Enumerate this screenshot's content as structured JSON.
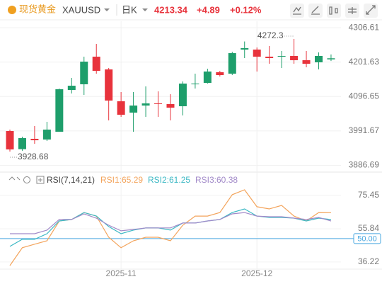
{
  "header": {
    "name": "现货黄金",
    "symbol": "XAUUSD",
    "period": "日K",
    "price": "4213.34",
    "change": "+4.89",
    "change_pct": "+0.12%"
  },
  "chart_data": [
    {
      "type": "candlestick",
      "categories": [
        null,
        null,
        null,
        null,
        null,
        null,
        null,
        null,
        null,
        "2025-11",
        null,
        null,
        null,
        null,
        null,
        null,
        null,
        null,
        null,
        null,
        "2025-12",
        null,
        null,
        null,
        null,
        null,
        null
      ],
      "open": [
        3991.3,
        3936,
        3967.6,
        3965.4,
        3989.2,
        4116.7,
        4134.0,
        4218.2,
        4179.3,
        4082.1,
        4047.5,
        4069.1,
        4075.6,
        4073.5,
        4067.0,
        4134.0,
        4138.3,
        4170.7,
        4166.4,
        4239.9,
        4239.9,
        4218.2,
        4220.4,
        4220.4,
        4207.4,
        4201.0,
        4210
      ],
      "close": [
        3935.2,
        3969.7,
        3963.2,
        3995.7,
        4118.8,
        4129.6,
        4203.1,
        4175.0,
        4084.3,
        4041.0,
        4069.1,
        4075.6,
        4073.5,
        4062.7,
        4136.1,
        4136.1,
        4172.9,
        4162.1,
        4229.0,
        4244.2,
        4218.2,
        4213.9,
        4220.4,
        4207.4,
        4196.6,
        4220.4,
        4213.34
      ],
      "high": [
        3995.7,
        3974.1,
        4006.5,
        4019.4,
        4121.0,
        4153.4,
        4218.2,
        4257.1,
        4183.7,
        4110.2,
        4110.2,
        4127.5,
        4112.4,
        4103.7,
        4142.6,
        4166.4,
        4181.5,
        4175.0,
        4233.4,
        4264.62,
        4246.3,
        4250.7,
        4235.5,
        4272.3,
        4235.5,
        4231.2,
        4225
      ],
      "low": [
        3928.68,
        3931,
        3952.4,
        3961.1,
        3989.2,
        4105.9,
        4101.5,
        4166.4,
        4023.8,
        4034.6,
        3989.2,
        4034.6,
        4034.6,
        4023.8,
        4038.9,
        4121.0,
        4136.1,
        4157.7,
        4162.1,
        4213.9,
        4172.9,
        4196.6,
        4183.7,
        4196.6,
        4185.8,
        4179.3,
        4205
      ],
      "up_color": "#1e9e6b",
      "down_color": "#e8333c",
      "ylim": [
        3866,
        4322
      ],
      "yticks": [
        3886.69,
        3991.67,
        4096.65,
        4201.63,
        4306.61
      ],
      "grid": true
    },
    {
      "type": "line",
      "title": "RSI(7,14,21)",
      "series": [
        {
          "name": "RSI1:65.29",
          "color": "#f3a45c",
          "values": [
            34.1,
            44.6,
            46.7,
            48.7,
            60.4,
            61.3,
            65.4,
            63.3,
            50.8,
            44.6,
            48.7,
            50.8,
            50.8,
            48.7,
            57.9,
            63.3,
            63.3,
            65.4,
            75.9,
            78.8,
            68.8,
            67.5,
            69.6,
            63.3,
            60.4,
            65.4,
            65.29
          ]
        },
        {
          "name": "RSI2:61.25",
          "color": "#3bb8c4",
          "values": [
            45.4,
            49.6,
            49.6,
            52.9,
            60.4,
            61.3,
            65.4,
            63.3,
            57.1,
            52.9,
            55.0,
            56.3,
            56.3,
            55.0,
            59.2,
            59.2,
            60.4,
            61.3,
            65.4,
            67.5,
            63.3,
            62.5,
            62.5,
            62.1,
            60.4,
            62.1,
            61.25
          ]
        },
        {
          "name": "RSI3:60.38",
          "color": "#a28ac9",
          "values": [
            52.9,
            52.9,
            52.9,
            55.0,
            61.3,
            61.3,
            64.6,
            62.1,
            57.9,
            54.6,
            55.4,
            56.3,
            56.3,
            56.3,
            59.2,
            59.2,
            60.4,
            61.3,
            64.6,
            65.4,
            63.3,
            62.9,
            62.9,
            62.1,
            61.3,
            62.5,
            60.38
          ]
        }
      ],
      "ylim": [
        32,
        81.3
      ],
      "yticks": [
        36.22,
        55.84,
        75.45
      ],
      "ref_line": {
        "value": 50,
        "label": "50.00",
        "color": "#4aa8e0"
      }
    }
  ]
}
